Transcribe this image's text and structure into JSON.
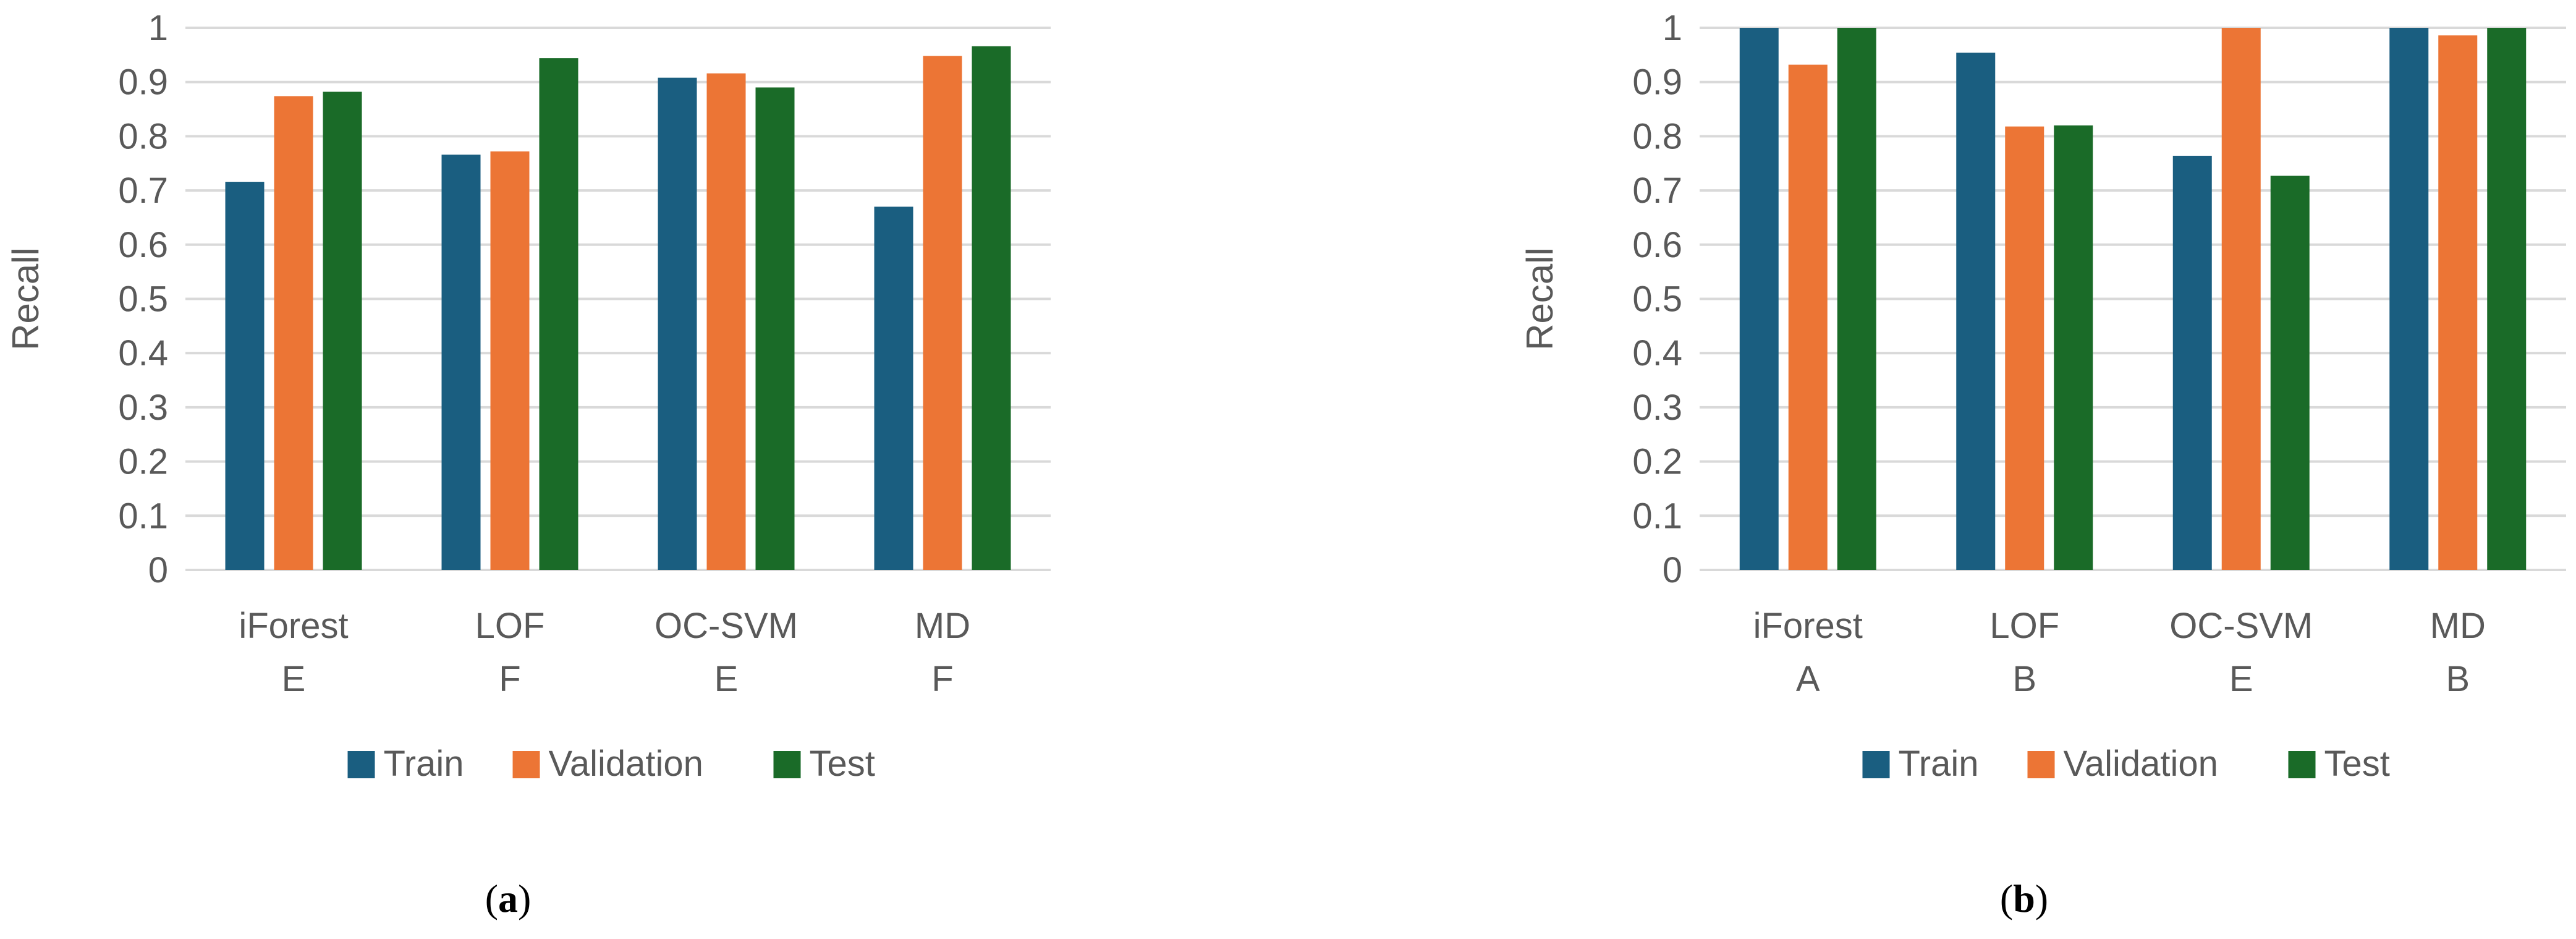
{
  "colors": {
    "Train": "#1a5e80",
    "Validation": "#ec7535",
    "Test": "#1a6b28",
    "grid": "#d9d9d9",
    "text": "#595959"
  },
  "chart_data": [
    {
      "type": "bar",
      "panel_label": "a",
      "ylabel": "Recall",
      "ylim": [
        0,
        1
      ],
      "yticks": [
        "0",
        "0.1",
        "0.2",
        "0.3",
        "0.4",
        "0.5",
        "0.6",
        "0.7",
        "0.8",
        "0.9",
        "1"
      ],
      "grid": true,
      "legend": "bottom",
      "categories": [
        {
          "name": "iForest",
          "sub": "E"
        },
        {
          "name": "LOF",
          "sub": "F"
        },
        {
          "name": "OC-SVM",
          "sub": "E"
        },
        {
          "name": "MD",
          "sub": "F"
        }
      ],
      "series": [
        {
          "name": "Train",
          "values": [
            0.716,
            0.766,
            0.908,
            0.67
          ]
        },
        {
          "name": "Validation",
          "values": [
            0.874,
            0.772,
            0.916,
            0.948
          ]
        },
        {
          "name": "Test",
          "values": [
            0.882,
            0.944,
            0.89,
            0.966
          ]
        }
      ]
    },
    {
      "type": "bar",
      "panel_label": "b",
      "ylabel": "Recall",
      "ylim": [
        0,
        1
      ],
      "yticks": [
        "0",
        "0.1",
        "0.2",
        "0.3",
        "0.4",
        "0.5",
        "0.6",
        "0.7",
        "0.8",
        "0.9",
        "1"
      ],
      "grid": true,
      "legend": "bottom",
      "categories": [
        {
          "name": "iForest",
          "sub": "A"
        },
        {
          "name": "LOF",
          "sub": "B"
        },
        {
          "name": "OC-SVM",
          "sub": "E"
        },
        {
          "name": "MD",
          "sub": "B"
        }
      ],
      "series": [
        {
          "name": "Train",
          "values": [
            1.0,
            0.954,
            0.764,
            1.0
          ]
        },
        {
          "name": "Validation",
          "values": [
            0.932,
            0.818,
            1.0,
            0.986
          ]
        },
        {
          "name": "Test",
          "values": [
            1.0,
            0.82,
            0.727,
            1.0
          ]
        }
      ]
    }
  ]
}
